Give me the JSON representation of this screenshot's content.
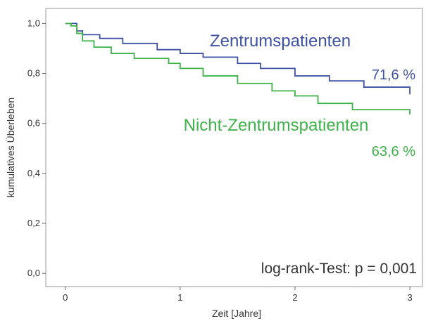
{
  "chart_data": {
    "type": "line",
    "step": true,
    "xlabel": "Zeit [Jahre]",
    "ylabel": "kumulatives Überleben",
    "xlim": [
      -0.17,
      3.11
    ],
    "xticks": [
      0,
      1,
      2,
      3
    ],
    "ylim": [
      -0.053,
      1.06
    ],
    "yticks": [
      {
        "value": 0,
        "label": "0,0"
      },
      {
        "value": 0.2,
        "label": "0,2"
      },
      {
        "value": 0.4,
        "label": "0,4"
      },
      {
        "value": 0.6,
        "label": "0,6"
      },
      {
        "value": 0.8,
        "label": "0,8"
      },
      {
        "value": 1,
        "label": "1,0"
      }
    ],
    "annotation": "log-rank-Test: p = 0,001",
    "series": [
      {
        "name": "Zentrumspatienten",
        "color": "#3f51a3",
        "end_label": "71,6 %",
        "x": [
          0,
          0.05,
          0.1,
          0.15,
          0.3,
          0.5,
          0.8,
          1.0,
          1.2,
          1.5,
          1.7,
          2.0,
          2.3,
          2.6,
          3.0
        ],
        "values": [
          1.0,
          1.0,
          0.97,
          0.955,
          0.94,
          0.92,
          0.895,
          0.88,
          0.865,
          0.84,
          0.82,
          0.79,
          0.77,
          0.745,
          0.716
        ]
      },
      {
        "name": "Nicht-Zentrumspatienten",
        "color": "#3db34a",
        "end_label": "63,6 %",
        "x": [
          0,
          0.05,
          0.1,
          0.15,
          0.25,
          0.4,
          0.6,
          0.9,
          1.0,
          1.2,
          1.5,
          1.8,
          2.0,
          2.2,
          2.5,
          3.0
        ],
        "values": [
          1.0,
          0.99,
          0.96,
          0.93,
          0.905,
          0.88,
          0.86,
          0.84,
          0.82,
          0.79,
          0.76,
          0.73,
          0.71,
          0.68,
          0.655,
          0.636
        ]
      }
    ]
  }
}
